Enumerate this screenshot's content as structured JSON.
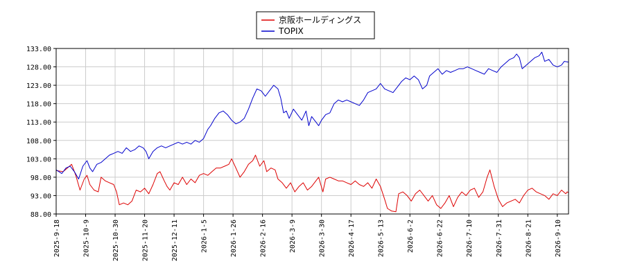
{
  "chart_data": {
    "type": "line",
    "title": "",
    "xlabel": "",
    "ylabel": "",
    "ylim": [
      88.0,
      133.0
    ],
    "yticks": [
      "88.00",
      "93.00",
      "98.00",
      "103.00",
      "108.00",
      "113.00",
      "118.00",
      "123.00",
      "128.00",
      "133.00"
    ],
    "xticks": [
      "2025-9-18",
      "2025-10-9",
      "2025-10-30",
      "2025-11-20",
      "2025-12-11",
      "2026-1-5",
      "2026-1-26",
      "2026-2-16",
      "2026-3-9",
      "2026-3-30",
      "2026-4-17",
      "2026-5-13",
      "2026-6-2",
      "2026-6-22",
      "2026-7-10",
      "2026-7-31",
      "2026-8-21",
      "2026-9-10"
    ],
    "grid": true,
    "legend": "top-center",
    "x_index_range": [
      0,
      249
    ],
    "series": [
      {
        "name": "京阪ホールディングス",
        "color": "#dd0000",
        "points": [
          [
            0,
            99.8
          ],
          [
            5,
            99.5
          ],
          [
            8,
            100.5
          ],
          [
            11,
            101.5
          ],
          [
            14,
            98.5
          ],
          [
            17,
            94.5
          ],
          [
            20,
            97.5
          ],
          [
            22,
            98.5
          ],
          [
            24,
            96.0
          ],
          [
            27,
            94.5
          ],
          [
            30,
            94.0
          ],
          [
            32,
            98.0
          ],
          [
            35,
            97.0
          ],
          [
            38,
            96.5
          ],
          [
            41,
            96.0
          ],
          [
            43,
            94.0
          ],
          [
            45,
            90.5
          ],
          [
            48,
            91.0
          ],
          [
            51,
            90.5
          ],
          [
            54,
            91.5
          ],
          [
            57,
            94.5
          ],
          [
            60,
            94.0
          ],
          [
            63,
            95.0
          ],
          [
            66,
            93.5
          ],
          [
            69,
            96.0
          ],
          [
            72,
            99.0
          ],
          [
            74,
            99.5
          ],
          [
            77,
            97.0
          ],
          [
            79,
            95.5
          ],
          [
            81,
            94.5
          ],
          [
            84,
            96.5
          ],
          [
            87,
            96.0
          ],
          [
            90,
            98.0
          ],
          [
            93,
            96.0
          ],
          [
            96,
            97.5
          ],
          [
            99,
            96.5
          ],
          [
            102,
            98.5
          ],
          [
            105,
            99.0
          ],
          [
            108,
            98.5
          ],
          [
            111,
            99.5
          ],
          [
            114,
            100.5
          ],
          [
            117,
            100.5
          ],
          [
            120,
            101.0
          ],
          [
            123,
            101.5
          ],
          [
            125,
            103.0
          ],
          [
            128,
            100.5
          ],
          [
            131,
            98.0
          ],
          [
            134,
            99.5
          ],
          [
            137,
            101.5
          ],
          [
            140,
            102.5
          ],
          [
            142,
            104.0
          ],
          [
            145,
            101.0
          ],
          [
            148,
            102.5
          ],
          [
            150,
            99.5
          ],
          [
            153,
            100.5
          ],
          [
            156,
            100.0
          ],
          [
            158,
            97.5
          ],
          [
            161,
            96.5
          ],
          [
            164,
            95.0
          ],
          [
            167,
            96.5
          ],
          [
            170,
            94.0
          ],
          [
            173,
            95.5
          ],
          [
            176,
            96.5
          ],
          [
            179,
            94.5
          ],
          [
            182,
            95.5
          ],
          [
            185,
            97.0
          ],
          [
            187,
            98.0
          ],
          [
            190,
            94.0
          ],
          [
            192,
            97.5
          ],
          [
            195,
            98.0
          ],
          [
            198,
            97.5
          ],
          [
            201,
            97.0
          ],
          [
            204,
            97.0
          ],
          [
            207,
            96.5
          ],
          [
            210,
            96.0
          ],
          [
            213,
            97.0
          ],
          [
            216,
            96.0
          ],
          [
            219,
            95.5
          ],
          [
            222,
            96.5
          ],
          [
            225,
            95.0
          ],
          [
            228,
            97.5
          ],
          [
            231,
            95.5
          ],
          [
            234,
            92.0
          ],
          [
            236,
            89.5
          ],
          [
            239,
            88.8
          ],
          [
            242,
            88.6
          ],
          [
            244,
            93.5
          ],
          [
            247,
            94.0
          ],
          [
            250,
            93.0
          ],
          [
            253,
            91.5
          ],
          [
            256,
            93.5
          ],
          [
            259,
            94.5
          ],
          [
            262,
            93.0
          ],
          [
            265,
            91.5
          ],
          [
            268,
            93.0
          ],
          [
            271,
            90.5
          ],
          [
            274,
            89.5
          ],
          [
            277,
            91.0
          ],
          [
            280,
            93.0
          ],
          [
            283,
            90.0
          ],
          [
            286,
            92.5
          ],
          [
            289,
            94.0
          ],
          [
            292,
            93.0
          ],
          [
            295,
            94.5
          ],
          [
            298,
            95.0
          ],
          [
            301,
            92.5
          ],
          [
            304,
            94.0
          ],
          [
            307,
            98.0
          ],
          [
            309,
            100.0
          ],
          [
            312,
            95.5
          ],
          [
            315,
            92.0
          ],
          [
            318,
            90.0
          ],
          [
            321,
            91.0
          ],
          [
            324,
            91.5
          ],
          [
            327,
            92.0
          ],
          [
            330,
            91.0
          ],
          [
            333,
            93.0
          ],
          [
            336,
            94.5
          ],
          [
            339,
            95.0
          ],
          [
            342,
            94.0
          ],
          [
            345,
            93.5
          ],
          [
            348,
            93.0
          ],
          [
            351,
            92.0
          ],
          [
            354,
            93.5
          ],
          [
            357,
            93.0
          ],
          [
            360,
            94.5
          ],
          [
            363,
            93.5
          ],
          [
            364,
            94.0
          ],
          [
            365,
            93.8
          ]
        ]
      },
      {
        "name": "TOPIX",
        "color": "#0000cc",
        "points": [
          [
            0,
            100.0
          ],
          [
            4,
            99.0
          ],
          [
            7,
            100.5
          ],
          [
            10,
            101.0
          ],
          [
            13,
            99.5
          ],
          [
            16,
            97.5
          ],
          [
            19,
            101.0
          ],
          [
            22,
            102.5
          ],
          [
            24,
            100.5
          ],
          [
            26,
            99.5
          ],
          [
            29,
            101.5
          ],
          [
            32,
            102.0
          ],
          [
            35,
            103.0
          ],
          [
            38,
            104.0
          ],
          [
            41,
            104.5
          ],
          [
            44,
            105.0
          ],
          [
            47,
            104.5
          ],
          [
            50,
            106.0
          ],
          [
            53,
            105.0
          ],
          [
            56,
            105.5
          ],
          [
            59,
            106.5
          ],
          [
            62,
            106.0
          ],
          [
            64,
            105.0
          ],
          [
            66,
            103.0
          ],
          [
            69,
            105.0
          ],
          [
            72,
            106.0
          ],
          [
            75,
            106.5
          ],
          [
            78,
            106.0
          ],
          [
            81,
            106.5
          ],
          [
            84,
            107.0
          ],
          [
            87,
            107.5
          ],
          [
            90,
            107.0
          ],
          [
            93,
            107.5
          ],
          [
            96,
            107.0
          ],
          [
            99,
            108.0
          ],
          [
            102,
            107.5
          ],
          [
            105,
            108.5
          ],
          [
            108,
            111.0
          ],
          [
            110,
            112.0
          ],
          [
            113,
            114.0
          ],
          [
            116,
            115.5
          ],
          [
            119,
            116.0
          ],
          [
            122,
            115.0
          ],
          [
            125,
            113.5
          ],
          [
            128,
            112.5
          ],
          [
            131,
            113.0
          ],
          [
            134,
            114.0
          ],
          [
            137,
            116.5
          ],
          [
            140,
            119.5
          ],
          [
            143,
            122.0
          ],
          [
            146,
            121.5
          ],
          [
            149,
            120.0
          ],
          [
            152,
            121.5
          ],
          [
            155,
            123.0
          ],
          [
            158,
            122.0
          ],
          [
            160,
            119.5
          ],
          [
            162,
            115.5
          ],
          [
            164,
            116.0
          ],
          [
            166,
            114.0
          ],
          [
            169,
            116.5
          ],
          [
            172,
            115.0
          ],
          [
            175,
            113.5
          ],
          [
            178,
            116.0
          ],
          [
            180,
            112.0
          ],
          [
            182,
            114.5
          ],
          [
            185,
            113.0
          ],
          [
            187,
            112.0
          ],
          [
            189,
            113.5
          ],
          [
            192,
            115.0
          ],
          [
            195,
            115.5
          ],
          [
            198,
            118.0
          ],
          [
            201,
            119.0
          ],
          [
            204,
            118.5
          ],
          [
            207,
            119.0
          ],
          [
            210,
            118.5
          ],
          [
            213,
            118.0
          ],
          [
            216,
            117.5
          ],
          [
            219,
            119.0
          ],
          [
            222,
            121.0
          ],
          [
            225,
            121.5
          ],
          [
            228,
            122.0
          ],
          [
            231,
            123.5
          ],
          [
            234,
            122.0
          ],
          [
            237,
            121.5
          ],
          [
            240,
            121.0
          ],
          [
            243,
            122.5
          ],
          [
            246,
            124.0
          ],
          [
            249,
            125.0
          ],
          [
            252,
            124.5
          ],
          [
            255,
            125.5
          ],
          [
            258,
            124.5
          ],
          [
            261,
            122.0
          ],
          [
            264,
            123.0
          ],
          [
            266,
            125.5
          ],
          [
            269,
            126.5
          ],
          [
            272,
            127.5
          ],
          [
            275,
            126.0
          ],
          [
            278,
            127.0
          ],
          [
            281,
            126.5
          ],
          [
            284,
            127.0
          ],
          [
            287,
            127.5
          ],
          [
            290,
            127.5
          ],
          [
            293,
            128.0
          ],
          [
            296,
            127.5
          ],
          [
            299,
            127.0
          ],
          [
            302,
            126.5
          ],
          [
            305,
            126.0
          ],
          [
            308,
            127.5
          ],
          [
            311,
            127.0
          ],
          [
            314,
            126.5
          ],
          [
            317,
            128.0
          ],
          [
            320,
            129.0
          ],
          [
            323,
            130.0
          ],
          [
            326,
            130.5
          ],
          [
            328,
            131.5
          ],
          [
            330,
            130.5
          ],
          [
            332,
            127.5
          ],
          [
            335,
            128.5
          ],
          [
            338,
            129.5
          ],
          [
            341,
            130.5
          ],
          [
            344,
            131.0
          ],
          [
            346,
            132.0
          ],
          [
            348,
            129.5
          ],
          [
            351,
            130.0
          ],
          [
            354,
            128.5
          ],
          [
            357,
            128.0
          ],
          [
            360,
            128.5
          ],
          [
            362,
            129.5
          ],
          [
            365,
            129.3
          ]
        ]
      }
    ],
    "axis_color": "#000000",
    "grid_color": "#cccccc"
  }
}
